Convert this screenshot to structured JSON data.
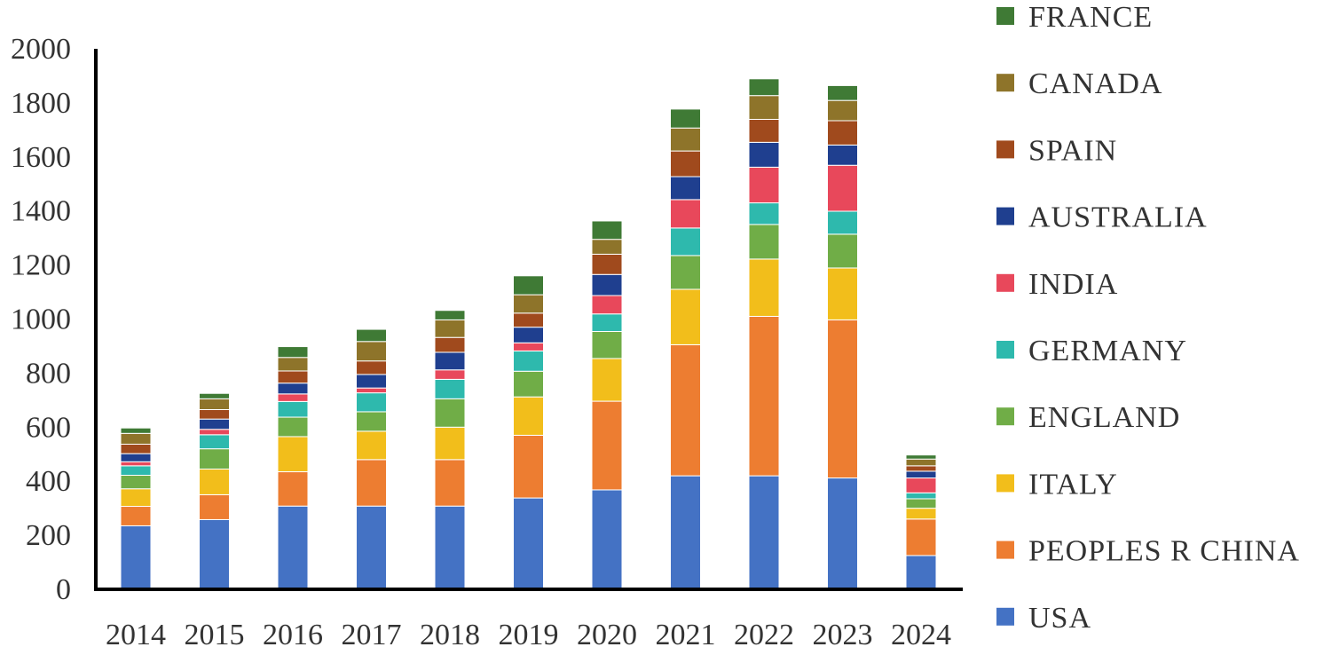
{
  "chart_data": {
    "type": "bar",
    "stacked": true,
    "title": "",
    "xlabel": "",
    "ylabel": "",
    "ylim": [
      0,
      2000
    ],
    "yticks": [
      0,
      200,
      400,
      600,
      800,
      1000,
      1200,
      1400,
      1600,
      1800,
      2000
    ],
    "grid": false,
    "legend_position": "right",
    "categories": [
      "2014",
      "2015",
      "2016",
      "2017",
      "2018",
      "2019",
      "2020",
      "2021",
      "2022",
      "2023",
      "2024"
    ],
    "series": [
      {
        "name": "USA",
        "color": "#4472C4",
        "values": [
          235,
          258,
          308,
          308,
          308,
          338,
          368,
          420,
          420,
          412,
          125
        ]
      },
      {
        "name": "PEOPLES R CHINA",
        "color": "#ED7D31",
        "values": [
          72,
          92,
          127,
          172,
          172,
          232,
          328,
          485,
          590,
          585,
          135
        ]
      },
      {
        "name": "ITALY",
        "color": "#F2BE1B",
        "values": [
          65,
          95,
          130,
          105,
          120,
          142,
          158,
          205,
          212,
          192,
          40
        ]
      },
      {
        "name": "ENGLAND",
        "color": "#70AD47",
        "values": [
          50,
          75,
          72,
          72,
          105,
          95,
          100,
          125,
          128,
          125,
          35
        ]
      },
      {
        "name": "GERMANY",
        "color": "#2EB9AD",
        "values": [
          35,
          52,
          58,
          70,
          72,
          75,
          65,
          102,
          80,
          85,
          22
        ]
      },
      {
        "name": "INDIA",
        "color": "#E8485B",
        "values": [
          15,
          20,
          28,
          18,
          35,
          30,
          68,
          105,
          132,
          170,
          55
        ]
      },
      {
        "name": "AUSTRALIA",
        "color": "#1F3F8F",
        "values": [
          30,
          38,
          40,
          50,
          65,
          58,
          78,
          85,
          92,
          75,
          25
        ]
      },
      {
        "name": "SPAIN",
        "color": "#A04A1D",
        "values": [
          35,
          35,
          45,
          50,
          55,
          52,
          75,
          95,
          85,
          90,
          20
        ]
      },
      {
        "name": "CANADA",
        "color": "#8E742A",
        "values": [
          40,
          40,
          50,
          72,
          65,
          68,
          55,
          85,
          88,
          75,
          25
        ]
      },
      {
        "name": "FRANCE",
        "color": "#3F7A35",
        "values": [
          20,
          20,
          40,
          45,
          35,
          70,
          68,
          70,
          62,
          55,
          15
        ]
      }
    ]
  }
}
